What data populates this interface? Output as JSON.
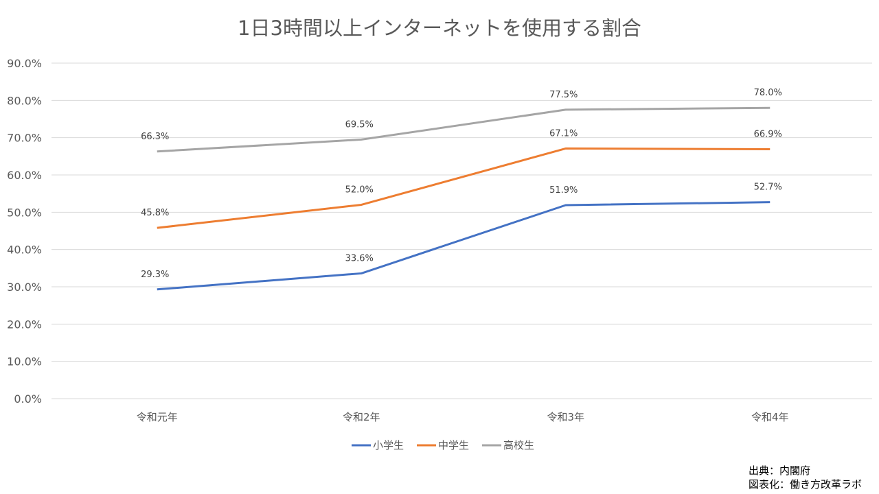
{
  "chart_data": {
    "type": "line",
    "title": "1日3時間以上インターネットを使用する割合",
    "categories": [
      "令和元年",
      "令和2年",
      "令和3年",
      "令和4年"
    ],
    "ylim": [
      0,
      90
    ],
    "yticks": [
      "0.0%",
      "10.0%",
      "20.0%",
      "30.0%",
      "40.0%",
      "50.0%",
      "60.0%",
      "70.0%",
      "80.0%",
      "90.0%"
    ],
    "grid": true,
    "legend_position": "bottom",
    "series": [
      {
        "name": "小学生",
        "color": "#4472C4",
        "values": [
          29.3,
          33.6,
          51.9,
          52.7
        ],
        "labels": [
          "29.3%",
          "33.6%",
          "51.9%",
          "52.7%"
        ]
      },
      {
        "name": "中学生",
        "color": "#ED7D31",
        "values": [
          45.8,
          52.0,
          67.1,
          66.9
        ],
        "labels": [
          "45.8%",
          "52.0%",
          "67.1%",
          "66.9%"
        ]
      },
      {
        "name": "高校生",
        "color": "#A5A5A5",
        "values": [
          66.3,
          69.5,
          77.5,
          78.0
        ],
        "labels": [
          "66.3%",
          "69.5%",
          "77.5%",
          "78.0%"
        ]
      }
    ]
  },
  "source": {
    "line1": "出典：内閣府",
    "line2": "図表化：働き方改革ラボ"
  }
}
